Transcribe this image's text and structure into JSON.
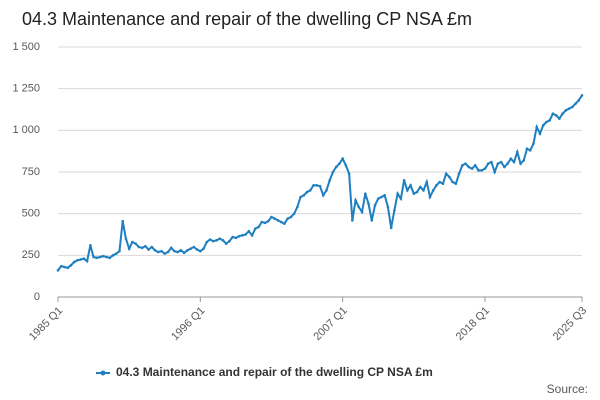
{
  "chart_data": {
    "type": "line",
    "title": "04.3 Maintenance and repair of the dwelling CP NSA £m",
    "source": "Source:",
    "categories": [
      "1985 Q1",
      null,
      null,
      null,
      null,
      null,
      null,
      null,
      null,
      null,
      null,
      null,
      null,
      null,
      null,
      null,
      null,
      null,
      null,
      null,
      null,
      null,
      null,
      null,
      null,
      null,
      null,
      null,
      null,
      null,
      null,
      null,
      null,
      null,
      null,
      null,
      null,
      null,
      null,
      null,
      null,
      null,
      null,
      null,
      "1996 Q1",
      null,
      null,
      null,
      null,
      null,
      null,
      null,
      null,
      null,
      null,
      null,
      null,
      null,
      null,
      null,
      null,
      null,
      null,
      null,
      null,
      null,
      null,
      null,
      null,
      null,
      null,
      null,
      null,
      null,
      null,
      null,
      null,
      null,
      null,
      null,
      null,
      null,
      null,
      null,
      null,
      null,
      null,
      null,
      "2007 Q1",
      null,
      null,
      null,
      null,
      null,
      null,
      null,
      null,
      null,
      null,
      null,
      null,
      null,
      null,
      null,
      null,
      null,
      null,
      null,
      null,
      null,
      null,
      null,
      null,
      null,
      null,
      null,
      null,
      null,
      null,
      null,
      null,
      null,
      null,
      null,
      null,
      null,
      null,
      null,
      null,
      null,
      null,
      null,
      "2018 Q1",
      null,
      null,
      null,
      null,
      null,
      null,
      null,
      null,
      null,
      null,
      null,
      null,
      null,
      null,
      null,
      null,
      null,
      null,
      null,
      null,
      null,
      null,
      null,
      null,
      null,
      null,
      null,
      null,
      null,
      "2025 Q3"
    ],
    "series": [
      {
        "name": "04.3 Maintenance and repair of the dwelling CP NSA £m",
        "color": "#1f7fc0",
        "values": [
          160,
          185,
          180,
          175,
          190,
          210,
          220,
          225,
          230,
          215,
          310,
          240,
          235,
          240,
          245,
          240,
          235,
          250,
          260,
          275,
          455,
          350,
          290,
          330,
          320,
          300,
          295,
          305,
          285,
          300,
          280,
          270,
          275,
          260,
          270,
          295,
          275,
          270,
          280,
          265,
          280,
          290,
          300,
          285,
          275,
          290,
          330,
          345,
          335,
          340,
          350,
          340,
          320,
          335,
          360,
          355,
          365,
          370,
          375,
          395,
          370,
          410,
          420,
          450,
          445,
          455,
          480,
          470,
          460,
          450,
          440,
          470,
          480,
          500,
          540,
          600,
          610,
          630,
          640,
          670,
          670,
          665,
          610,
          640,
          700,
          750,
          780,
          800,
          830,
          790,
          740,
          460,
          580,
          540,
          510,
          620,
          560,
          460,
          550,
          590,
          600,
          610,
          540,
          415,
          520,
          620,
          590,
          700,
          640,
          670,
          620,
          630,
          660,
          640,
          690,
          600,
          640,
          670,
          690,
          680,
          740,
          720,
          690,
          680,
          740,
          790,
          800,
          780,
          770,
          790,
          760,
          760,
          770,
          800,
          810,
          750,
          800,
          810,
          780,
          800,
          830,
          810,
          870,
          800,
          820,
          890,
          880,
          920,
          1020,
          980,
          1030,
          1050,
          1060,
          1100,
          1090,
          1070,
          1100,
          1120,
          1130,
          1140,
          1160,
          1180,
          1210
        ]
      }
    ],
    "ylim": [
      0,
      1500
    ],
    "yticks": [
      0,
      250,
      500,
      750,
      {
        "value": 1000,
        "label": "1 000"
      },
      {
        "value": 1250,
        "label": "1 250"
      },
      {
        "value": 1500,
        "label": "1 500"
      }
    ],
    "grid": true,
    "legend": "bottom"
  }
}
